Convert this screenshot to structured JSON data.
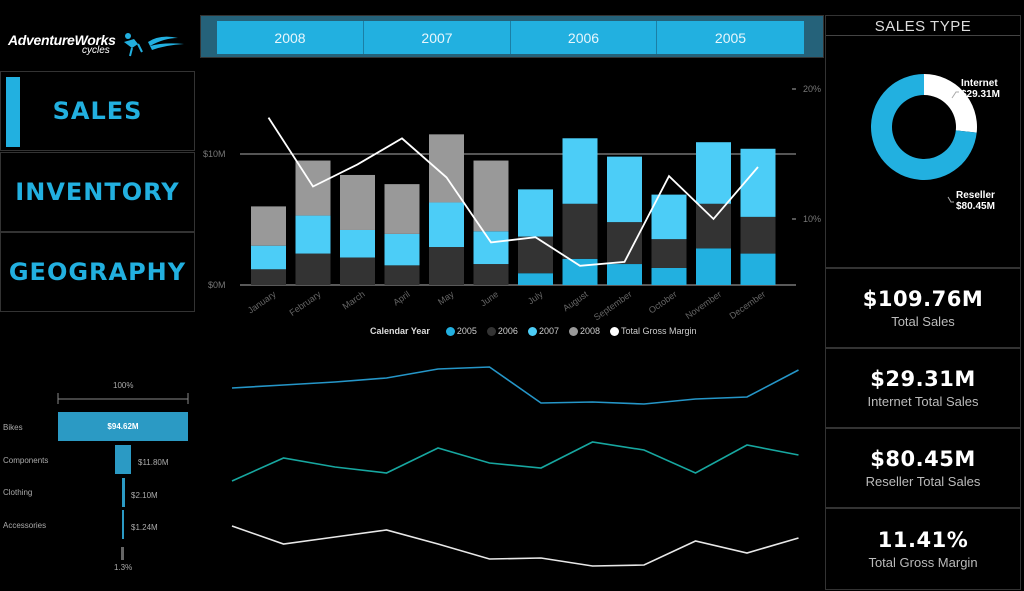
{
  "logo": {
    "brand": "AdventureWorks",
    "sub": "cycles",
    "icon": "cyclist-icon"
  },
  "nav": {
    "items": [
      {
        "label": "SALES",
        "active": true
      },
      {
        "label": "INVENTORY",
        "active": false
      },
      {
        "label": "GEOGRAPHY",
        "active": false
      }
    ]
  },
  "year_filter": {
    "buttons": [
      "2008",
      "2007",
      "2006",
      "2005"
    ]
  },
  "colors": {
    "accent": "#22b0e0",
    "y2005": "#22b0e0",
    "y2006": "#333333",
    "y2007": "#4ccdf7",
    "y2008": "#999999",
    "margin_line": "#ffffff",
    "funnel": "#2b9ac4",
    "trend_top": "#2596c8",
    "trend_mid": "#17a7a0",
    "trend_bottom": "#e8e8e8"
  },
  "chart_data": [
    {
      "type": "bar",
      "subtype": "stacked-bar-with-line",
      "title": "",
      "xlabel": "",
      "ylabel": "",
      "categories": [
        "January",
        "February",
        "March",
        "April",
        "May",
        "June",
        "July",
        "August",
        "September",
        "October",
        "November",
        "December"
      ],
      "y_ticks": [
        "$0M",
        "$10M"
      ],
      "y2_ticks": [
        "10%",
        "20%"
      ],
      "ylim": [
        0,
        15
      ],
      "y2lim": [
        0,
        20
      ],
      "legend_title": "Calendar Year",
      "legend_position": "bottom",
      "series": [
        {
          "name": "2005",
          "values": [
            0,
            0,
            0,
            0,
            0,
            0,
            0.9,
            2.0,
            1.6,
            1.3,
            2.8,
            2.4
          ]
        },
        {
          "name": "2006",
          "values": [
            1.2,
            2.4,
            2.1,
            1.5,
            2.9,
            1.6,
            2.8,
            4.2,
            3.2,
            2.2,
            3.4,
            2.8
          ]
        },
        {
          "name": "2007",
          "values": [
            1.8,
            2.9,
            2.1,
            2.4,
            3.4,
            2.5,
            3.6,
            5.0,
            5.0,
            3.4,
            4.7,
            5.2
          ]
        },
        {
          "name": "2008",
          "values": [
            3.0,
            4.2,
            4.2,
            3.8,
            5.2,
            5.4,
            0,
            0,
            0,
            0,
            0,
            0
          ]
        }
      ],
      "line_series": {
        "name": "Total Gross Margin",
        "axis": "y2",
        "values": [
          17.8,
          12.5,
          14.2,
          16.2,
          13.2,
          8.2,
          8.6,
          6.4,
          6.7,
          13.3,
          10.0,
          14.0
        ]
      }
    },
    {
      "type": "bar",
      "subtype": "funnel",
      "top_label": "100%",
      "bottom_label": "1.3%",
      "categories": [
        "Bikes",
        "Components",
        "Clothing",
        "Accessories"
      ],
      "values": [
        94.62,
        11.8,
        2.1,
        1.24
      ],
      "value_labels": [
        "$94.62M",
        "$11.80M",
        "$2.10M",
        "$1.24M"
      ]
    },
    {
      "type": "pie",
      "subtype": "donut",
      "title": "SALES TYPE",
      "categories": [
        "Internet",
        "Reseller"
      ],
      "values": [
        29.31,
        80.45
      ],
      "value_labels": [
        "$29.31M",
        "$80.45M"
      ]
    },
    {
      "type": "line",
      "subtype": "sparklines",
      "categories": [
        "January",
        "February",
        "March",
        "April",
        "May",
        "June",
        "July",
        "August",
        "September",
        "October",
        "November",
        "December"
      ],
      "series": [
        {
          "name": "top",
          "values": [
            38,
            35,
            32,
            28,
            19,
            17,
            53,
            52,
            54,
            49,
            47,
            20
          ]
        },
        {
          "name": "middle",
          "values": [
            131,
            108,
            117,
            123,
            98,
            113,
            118,
            92,
            100,
            123,
            95,
            105
          ]
        },
        {
          "name": "bottom",
          "values": [
            176,
            194,
            187,
            180,
            194,
            209,
            208,
            216,
            215,
            191,
            203,
            188
          ]
        }
      ],
      "note": "values are relative vertical positions (px from top); no axes shown"
    }
  ],
  "sales_type": {
    "header": "SALES TYPE",
    "internet_label": "Internet",
    "internet_value": "$29.31M",
    "reseller_label": "Reseller",
    "reseller_value": "$80.45M"
  },
  "kpis": [
    {
      "value": "$109.76M",
      "label": "Total Sales"
    },
    {
      "value": "$29.31M",
      "label": "Internet Total Sales"
    },
    {
      "value": "$80.45M",
      "label": "Reseller Total Sales"
    },
    {
      "value": "11.41%",
      "label": "Total Gross Margin"
    }
  ]
}
